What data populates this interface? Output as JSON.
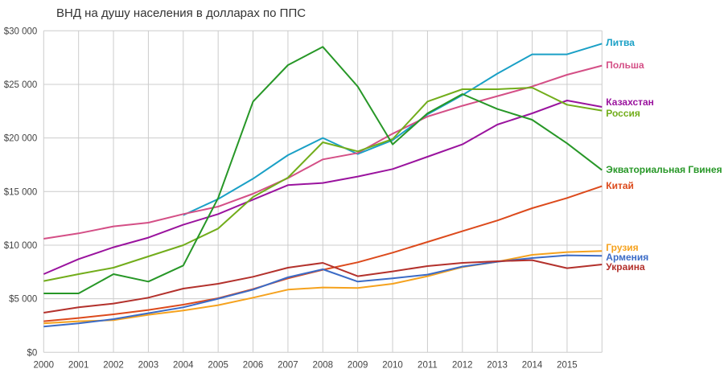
{
  "chart_data": {
    "type": "line",
    "title": "ВНД на душу населения в долларах по ППС",
    "xlabel": "",
    "ylabel": "",
    "x": [
      2000,
      2001,
      2002,
      2003,
      2004,
      2005,
      2006,
      2007,
      2008,
      2009,
      2010,
      2011,
      2012,
      2013,
      2014,
      2015,
      2016
    ],
    "x_tick_labels": [
      "2000",
      "2001",
      "2002",
      "2003",
      "2004",
      "2005",
      "2006",
      "2007",
      "2008",
      "2009",
      "2010",
      "2011",
      "2012",
      "2013",
      "2014",
      "2015"
    ],
    "ylim": [
      0,
      30000
    ],
    "y_ticks": [
      0,
      5000,
      10000,
      15000,
      20000,
      25000,
      30000
    ],
    "y_tick_labels": [
      "$0",
      "$5 000",
      "$10 000",
      "$15 000",
      "$20 000",
      "$25 000",
      "$30 000"
    ],
    "grid": true,
    "legend": "right-end-labels",
    "series": [
      {
        "name": "Литва",
        "color": "#1aa0c6",
        "values": [
          null,
          null,
          null,
          null,
          12800,
          14300,
          16200,
          18400,
          20000,
          18500,
          19800,
          22200,
          24000,
          26000,
          27800,
          27800,
          28800
        ]
      },
      {
        "name": "Польша",
        "color": "#d44f86",
        "values": [
          10600,
          11100,
          11750,
          12100,
          12900,
          13600,
          14800,
          16250,
          18000,
          18600,
          20400,
          22000,
          23000,
          23900,
          24800,
          25900,
          26750
        ]
      },
      {
        "name": "Казахстан",
        "color": "#9a139e",
        "values": [
          7300,
          8700,
          9800,
          10700,
          11900,
          12900,
          14250,
          15600,
          15800,
          16400,
          17100,
          18250,
          19400,
          21250,
          22300,
          23500,
          22900
        ]
      },
      {
        "name": "Россия",
        "color": "#72ad1b",
        "values": [
          6650,
          7300,
          7900,
          8950,
          10000,
          11550,
          14500,
          16300,
          19600,
          18750,
          19900,
          23400,
          24550,
          24550,
          24700,
          23100,
          22550
        ]
      },
      {
        "name": "Экваториальная Гвинея",
        "color": "#279727",
        "values": [
          5500,
          5500,
          7300,
          6600,
          8100,
          14400,
          23400,
          26800,
          28500,
          24800,
          19400,
          22300,
          24100,
          22700,
          21700,
          19500,
          17000
        ]
      },
      {
        "name": "Китай",
        "color": "#dc4a1c",
        "values": [
          2900,
          3200,
          3550,
          3950,
          4450,
          5050,
          5900,
          6900,
          7700,
          8400,
          9300,
          10300,
          11300,
          12300,
          13450,
          14400,
          15500
        ]
      },
      {
        "name": "Грузия",
        "color": "#f5a21e",
        "values": [
          2700,
          2900,
          3000,
          3500,
          3900,
          4400,
          5100,
          5850,
          6050,
          6000,
          6400,
          7100,
          7950,
          8450,
          9100,
          9350,
          9450
        ]
      },
      {
        "name": "Армения",
        "color": "#3b6bc6",
        "values": [
          2400,
          2700,
          3100,
          3650,
          4200,
          5000,
          5850,
          7000,
          7750,
          6600,
          6900,
          7250,
          8000,
          8450,
          8800,
          9050,
          9000
        ]
      },
      {
        "name": "Украина",
        "color": "#b3312c",
        "values": [
          3700,
          4200,
          4550,
          5100,
          5950,
          6400,
          7050,
          7900,
          8350,
          7100,
          7550,
          8050,
          8350,
          8500,
          8600,
          7850,
          8200
        ]
      }
    ],
    "label_offsets_note": ""
  }
}
